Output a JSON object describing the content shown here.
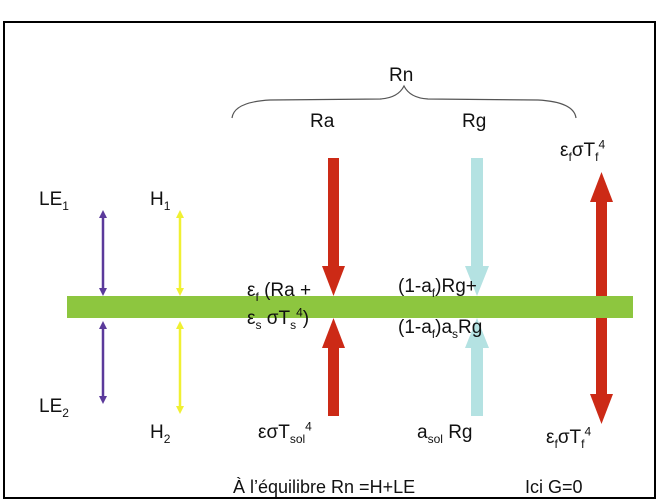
{
  "brace_label": "Rn",
  "incoming": {
    "ra": "Ra",
    "rg": "Rg"
  },
  "fluxes": {
    "le1": {
      "base": "LE",
      "sub": "1"
    },
    "h1": {
      "base": "H",
      "sub": "1"
    },
    "le2": {
      "base": "LE",
      "sub": "2"
    },
    "h2": {
      "base": "H",
      "sub": "2"
    }
  },
  "leaf_emission_top": {
    "eps": "ε",
    "eps_sub": "f",
    "sigma": "σT",
    "t_sub": "f",
    "pow": "4"
  },
  "leaf_emission_bottom": {
    "eps": "ε",
    "eps_sub": "f",
    "sigma": "σT",
    "t_sub": "f",
    "pow": "4"
  },
  "absorbed_ra": {
    "line1": {
      "eps": "ε",
      "eps_sub": "f",
      "rest": " (Ra +"
    },
    "line2": {
      "eps": "ε",
      "eps_sub": "s",
      "sigma": " σT",
      "t_sub": "s",
      "pow": "4",
      "close": ")"
    }
  },
  "absorbed_rg": {
    "line1": {
      "pre": "(1-a",
      "sub": "f",
      "post": ")Rg+"
    },
    "line2": {
      "pre": "(1-a",
      "sub1": "f",
      "mid": ")a",
      "sub2": "s",
      "post": "Rg"
    }
  },
  "soil_emission": {
    "text": "εσT",
    "sub": "sol",
    "pow": "4"
  },
  "soil_reflection": {
    "pre": "a",
    "sub": "sol",
    "post": " Rg"
  },
  "footer": {
    "balance": "À l’équilibre Rn =H+LE",
    "ground": "Ici G=0"
  },
  "colors": {
    "leaf": "#8dc63f",
    "le_arrow": "#5b3a9b",
    "h_arrow": "#f0f032",
    "ra_arrow": "#cc2a16",
    "rg_arrow": "#b4e2e2",
    "emit_arrow": "#cc2a16"
  }
}
